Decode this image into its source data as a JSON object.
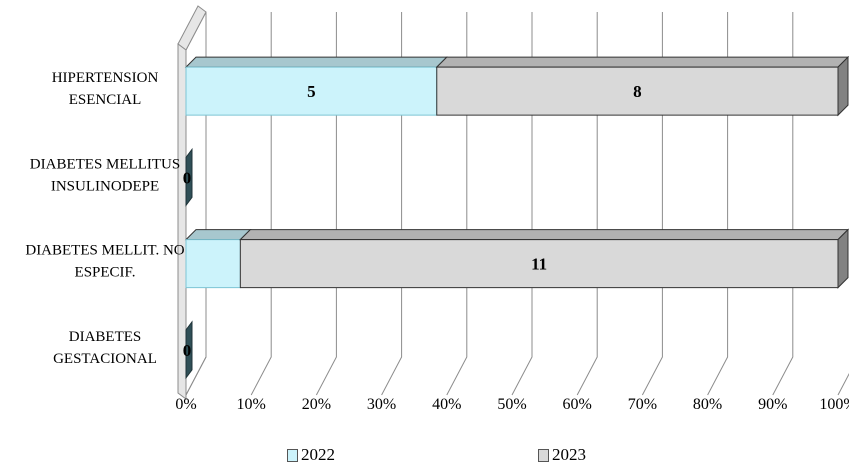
{
  "chart_data": {
    "type": "bar",
    "orientation": "horizontal",
    "stacking": "percent",
    "style": "3d",
    "categories": [
      [
        "HIPERTENSION",
        "ESENCIAL"
      ],
      [
        "DIABETES MELLITUS",
        "INSULINODEPE"
      ],
      [
        "DIABETES MELLIT. NO",
        "ESPECIF."
      ],
      [
        "DIABETES",
        "GESTACIONAL"
      ]
    ],
    "series": [
      {
        "name": "2022",
        "values": [
          5,
          0,
          1,
          0
        ],
        "color": "#ccf3fb"
      },
      {
        "name": "2023",
        "values": [
          8,
          0,
          11,
          0
        ],
        "color": "#d9d9d9"
      }
    ],
    "data_labels": [
      {
        "category": 0,
        "series": 0,
        "text": "5"
      },
      {
        "category": 0,
        "series": 1,
        "text": "8"
      },
      {
        "category": 1,
        "series": 0,
        "text": "0"
      },
      {
        "category": 2,
        "series": 1,
        "text": "11"
      },
      {
        "category": 3,
        "series": 0,
        "text": "0"
      }
    ],
    "xlim": [
      0,
      100
    ],
    "x_ticks": [
      "0%",
      "10%",
      "20%",
      "30%",
      "40%",
      "50%",
      "60%",
      "70%",
      "80%",
      "90%",
      "100%"
    ],
    "grid": true,
    "legend_position": "bottom",
    "title": "",
    "xlabel": "",
    "ylabel": ""
  }
}
